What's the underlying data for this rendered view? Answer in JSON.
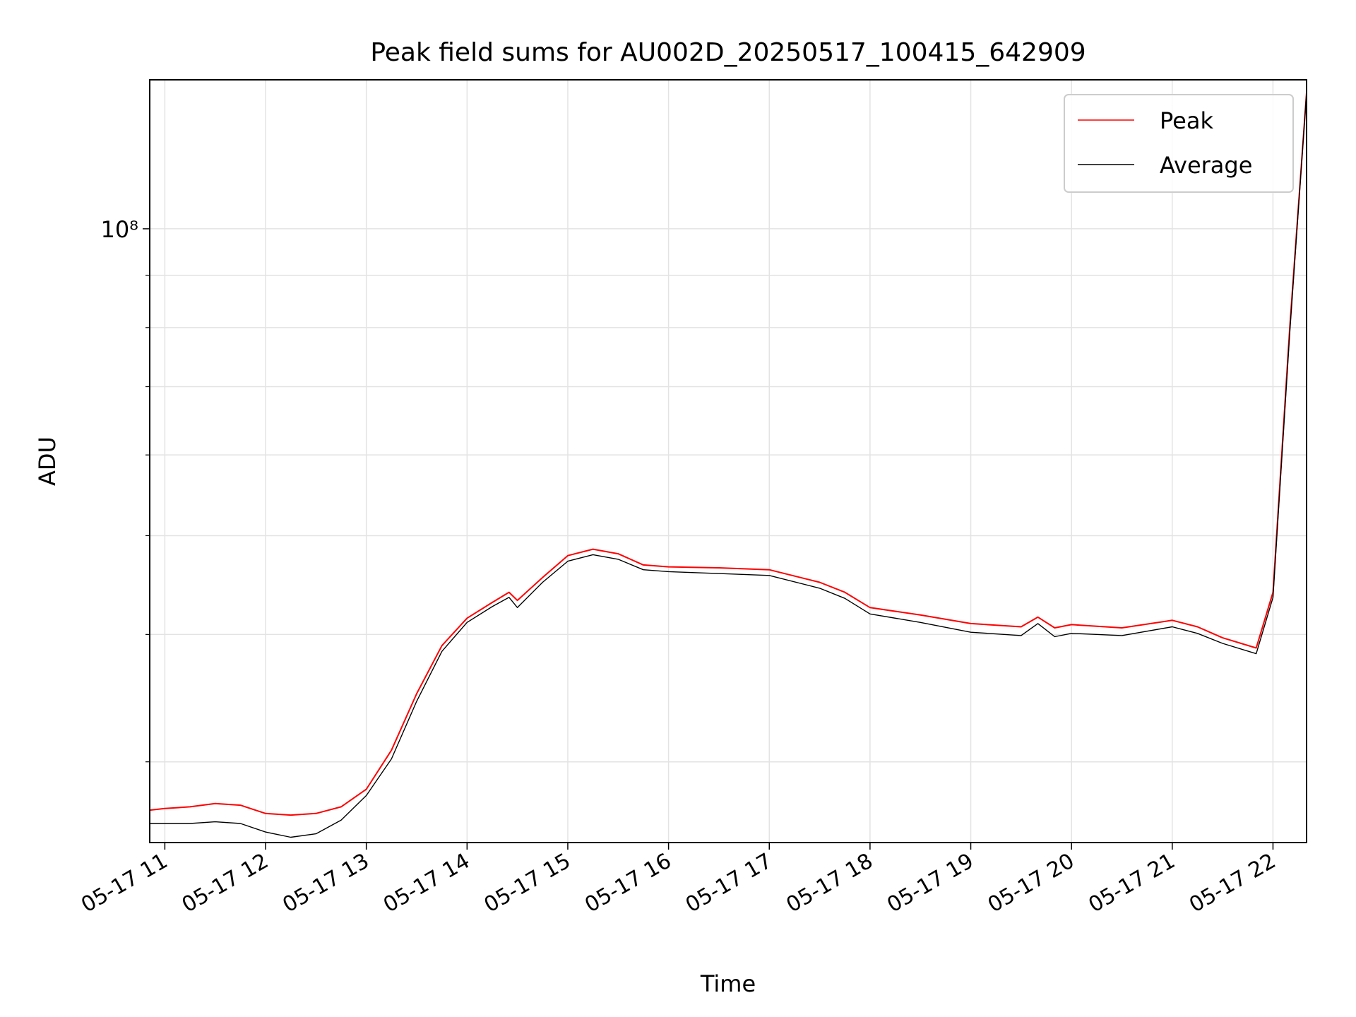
{
  "chart_data": {
    "type": "line",
    "title": "Peak field sums for AU002D_20250517_100415_642909",
    "xlabel": "Time",
    "ylabel": "ADU",
    "yscale": "log",
    "grid": true,
    "legend_position": "top-right",
    "x_tick_labels": [
      "05-17 11",
      "05-17 12",
      "05-17 13",
      "05-17 14",
      "05-17 15",
      "05-17 16",
      "05-17 17",
      "05-17 18",
      "05-17 19",
      "05-17 20",
      "05-17 21",
      "05-17 22"
    ],
    "y_tick_labels": [
      "10⁸"
    ],
    "xlim": [
      "2025-05-17 10:51",
      "2025-05-17 22:20"
    ],
    "ylim": [
      25000000,
      140000000
    ],
    "x": [
      "2025-05-17 10:51",
      "2025-05-17 11:00",
      "2025-05-17 11:15",
      "2025-05-17 11:30",
      "2025-05-17 11:45",
      "2025-05-17 12:00",
      "2025-05-17 12:15",
      "2025-05-17 12:30",
      "2025-05-17 12:45",
      "2025-05-17 13:00",
      "2025-05-17 13:15",
      "2025-05-17 13:30",
      "2025-05-17 13:45",
      "2025-05-17 14:00",
      "2025-05-17 14:15",
      "2025-05-17 14:25",
      "2025-05-17 14:30",
      "2025-05-17 14:45",
      "2025-05-17 15:00",
      "2025-05-17 15:15",
      "2025-05-17 15:30",
      "2025-05-17 15:45",
      "2025-05-17 16:00",
      "2025-05-17 16:30",
      "2025-05-17 17:00",
      "2025-05-17 17:30",
      "2025-05-17 17:45",
      "2025-05-17 18:00",
      "2025-05-17 18:30",
      "2025-05-17 19:00",
      "2025-05-17 19:30",
      "2025-05-17 19:40",
      "2025-05-17 19:50",
      "2025-05-17 20:00",
      "2025-05-17 20:30",
      "2025-05-17 21:00",
      "2025-05-17 21:15",
      "2025-05-17 21:30",
      "2025-05-17 21:50",
      "2025-05-17 22:00",
      "2025-05-17 22:10",
      "2025-05-17 22:20"
    ],
    "series": [
      {
        "name": "Peak",
        "color": "#ff0000",
        "values": [
          26900000,
          27000000,
          27100000,
          27300000,
          27200000,
          26700000,
          26600000,
          26700000,
          27100000,
          28200000,
          30800000,
          35000000,
          39000000,
          41500000,
          43000000,
          44000000,
          43200000,
          45500000,
          47800000,
          48500000,
          48000000,
          46800000,
          46600000,
          46500000,
          46300000,
          45000000,
          44000000,
          42500000,
          41800000,
          41000000,
          40700000,
          41600000,
          40600000,
          40900000,
          40600000,
          41300000,
          40700000,
          39700000,
          38800000,
          44000000,
          80000000,
          136000000
        ]
      },
      {
        "name": "Average",
        "color": "#000000",
        "values": [
          26100000,
          26100000,
          26100000,
          26200000,
          26100000,
          25600000,
          25300000,
          25500000,
          26300000,
          27800000,
          30200000,
          34400000,
          38500000,
          41100000,
          42600000,
          43500000,
          42500000,
          45000000,
          47200000,
          47900000,
          47400000,
          46300000,
          46100000,
          45900000,
          45700000,
          44400000,
          43400000,
          41900000,
          41100000,
          40200000,
          39900000,
          41000000,
          39800000,
          40100000,
          39900000,
          40700000,
          40100000,
          39200000,
          38300000,
          43500000,
          79000000,
          136000000
        ]
      }
    ]
  }
}
